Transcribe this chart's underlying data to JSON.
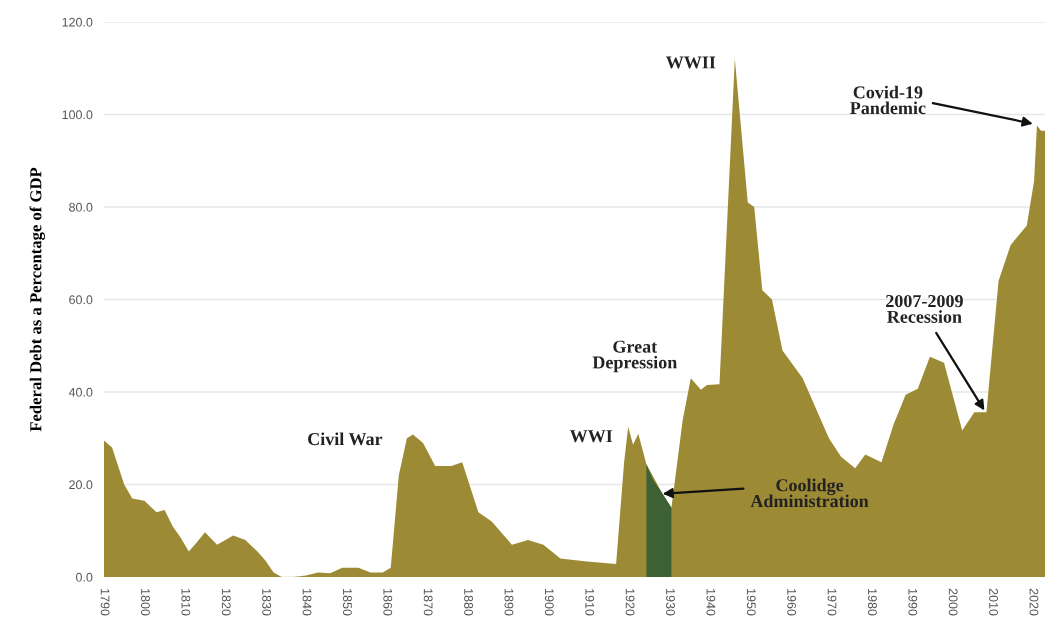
{
  "chart_data": {
    "type": "area",
    "ylabel": "Federal Debt as a Percentage of GDP",
    "series": [
      {
        "color": "#9d8a35",
        "x": [
          1790,
          1792,
          1795,
          1797,
          1800,
          1803,
          1805,
          1807,
          1809,
          1811,
          1813,
          1815,
          1818,
          1822,
          1825,
          1828,
          1830,
          1832,
          1834,
          1837,
          1840,
          1843,
          1846,
          1849,
          1853,
          1856,
          1859,
          1861,
          1862,
          1863,
          1865,
          1866.5,
          1869,
          1872,
          1876,
          1878.7,
          1882.7,
          1886,
          1891,
          1895,
          1898.8,
          1903,
          1909,
          1916.8,
          1918.8,
          1919.8,
          1921,
          1922.3,
          1924.3,
          1928.3,
          1930.5,
          1933.3,
          1935.3,
          1937.8,
          1939.3,
          1942.4,
          1946.2,
          1949.4,
          1951,
          1953,
          1955.4,
          1958,
          1963,
          1969.5,
          1972.5,
          1976,
          1978.5,
          1982.5,
          1985.5,
          1988.5,
          1991.5,
          1994.5,
          1998,
          2002.5,
          2005.5,
          2008.5,
          2011.5,
          2014.5,
          2018.5,
          2020.3,
          2021,
          2022,
          2023
        ],
        "values": [
          29.5,
          28,
          20,
          17,
          16.5,
          14,
          14.5,
          11,
          8.5,
          5.5,
          7.5,
          9.7,
          7,
          9,
          8,
          5.5,
          3.5,
          1,
          0,
          0,
          0.3,
          1,
          0.8,
          2,
          2,
          1,
          1,
          2,
          12,
          22,
          30,
          30.8,
          29,
          24,
          24,
          24.8,
          14,
          12,
          7,
          8,
          7,
          4,
          3.4,
          2.8,
          25,
          32.5,
          28.6,
          31,
          24.4,
          18,
          15,
          34,
          43,
          40.5,
          41.5,
          41.7,
          112,
          81,
          80,
          62,
          60,
          49,
          43,
          30,
          26,
          23.5,
          26.5,
          24.8,
          33,
          39.4,
          40.7,
          47.6,
          46.3,
          31.7,
          35.6,
          35.6,
          64,
          71.8,
          76,
          85.6,
          97.6,
          96.5,
          96.5
        ]
      },
      {
        "color": "#3d6134",
        "x": [
          1924.3,
          1926,
          1928.3,
          1930.5
        ],
        "values": [
          24.4,
          21,
          18,
          15
        ]
      }
    ],
    "xlim": [
      1790,
      2023
    ],
    "ylim": [
      0,
      120
    ],
    "xticks": [
      1790,
      1800,
      1810,
      1820,
      1830,
      1840,
      1850,
      1860,
      1870,
      1880,
      1890,
      1900,
      1910,
      1920,
      1930,
      1940,
      1950,
      1960,
      1970,
      1980,
      1990,
      2000,
      2010,
      2020
    ],
    "yticks": [
      {
        "value": 0,
        "label": "0.0"
      },
      {
        "value": 20,
        "label": "20.0"
      },
      {
        "value": 40,
        "label": "40.0"
      },
      {
        "value": 60,
        "label": "60.0"
      },
      {
        "value": 80,
        "label": "80.0"
      },
      {
        "value": 100,
        "label": "100.0"
      },
      {
        "value": 120,
        "label": "120.0"
      }
    ],
    "grid": "y",
    "annotations": [
      {
        "text": "Civil War",
        "x": 1865,
        "y": 31
      },
      {
        "text": "WWI",
        "x": 1919.8,
        "y": 32.5
      },
      {
        "text": "Great\nDepression",
        "x": 1935.3,
        "y": 43
      },
      {
        "text": "WWII",
        "x": 1946.2,
        "y": 112
      },
      {
        "text": "Coolidge\nAdministration",
        "x": 1928.3,
        "y": 18
      },
      {
        "text": "2007-2009\nRecession",
        "x": 2008,
        "y": 36
      },
      {
        "text": "Covid-19\nPandemic",
        "x": 2020,
        "y": 98
      }
    ]
  }
}
